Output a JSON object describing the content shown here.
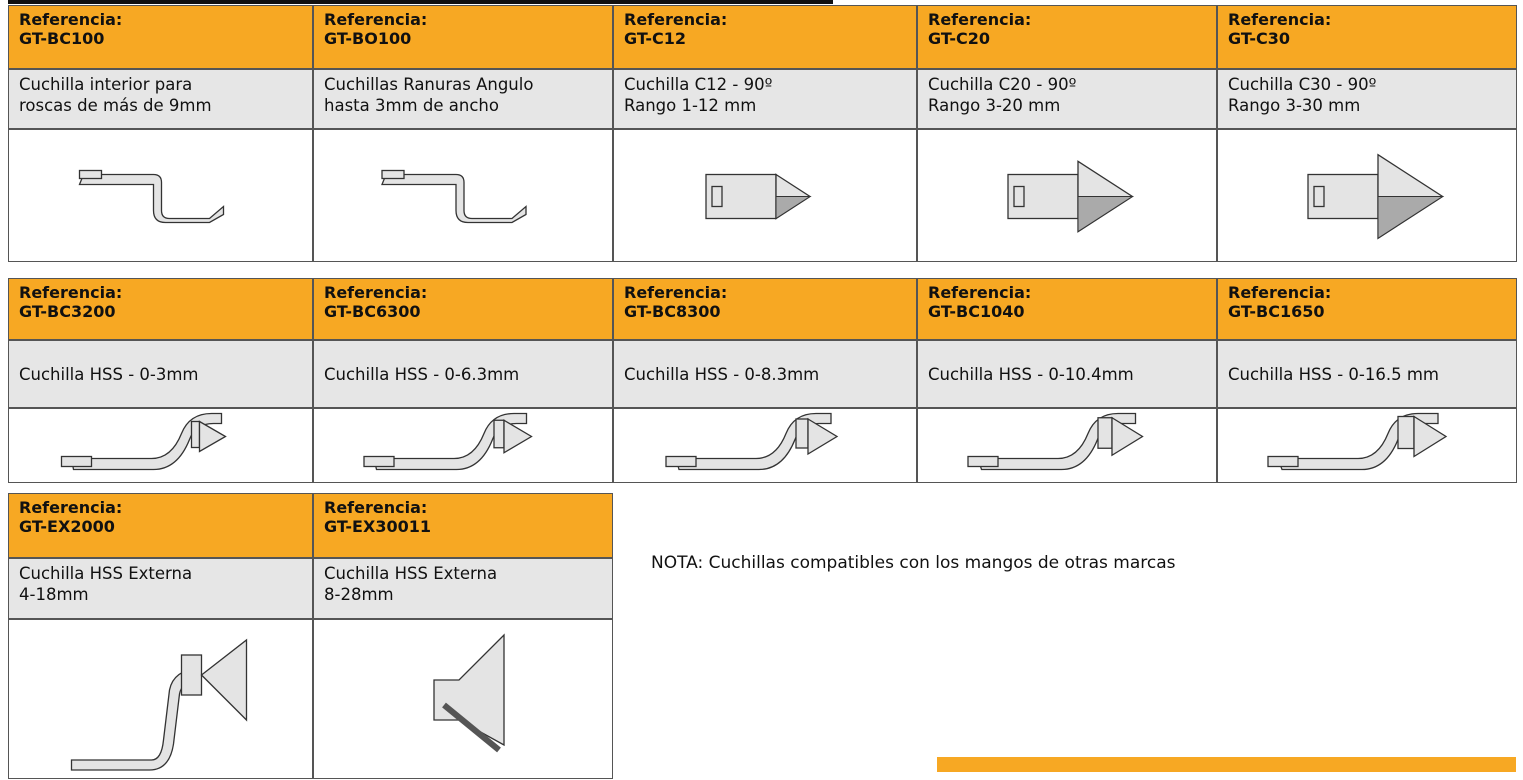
{
  "tables": [
    {
      "cells": [
        {
          "label": "Referencia:",
          "code": "GT-BC100",
          "description": [
            "Cuchilla interior para",
            "roscas de más de 9mm"
          ]
        },
        {
          "label": "Referencia:",
          "code": "GT-BO100",
          "description": [
            "Cuchillas Ranuras Angulo",
            "hasta 3mm de ancho"
          ]
        },
        {
          "label": "Referencia:",
          "code": "GT-C12",
          "description": [
            "Cuchilla C12 - 90º",
            "Rango 1-12 mm"
          ]
        },
        {
          "label": "Referencia:",
          "code": "GT-C20",
          "description": [
            "Cuchilla C20 - 90º",
            "Rango 3-20 mm"
          ]
        },
        {
          "label": "Referencia:",
          "code": "GT-C30",
          "description": [
            "Cuchilla C30 - 90º",
            "Rango 3-30 mm"
          ]
        }
      ]
    },
    {
      "cells": [
        {
          "label": "Referencia:",
          "code": "GT-BC3200",
          "description": [
            "Cuchilla HSS - 0-3mm"
          ]
        },
        {
          "label": "Referencia:",
          "code": "GT-BC6300",
          "description": [
            "Cuchilla HSS - 0-6.3mm"
          ]
        },
        {
          "label": "Referencia:",
          "code": "GT-BC8300",
          "description": [
            "Cuchilla HSS - 0-8.3mm"
          ]
        },
        {
          "label": "Referencia:",
          "code": "GT-BC1040",
          "description": [
            "Cuchilla HSS - 0-10.4mm"
          ]
        },
        {
          "label": "Referencia:",
          "code": "GT-BC1650",
          "description": [
            "Cuchilla HSS - 0-16.5 mm"
          ]
        }
      ]
    },
    {
      "cells": [
        {
          "label": "Referencia:",
          "code": "GT-EX2000",
          "description": [
            "Cuchilla HSS Externa",
            "4-18mm"
          ]
        },
        {
          "label": "Referencia:",
          "code": "GT-EX30011",
          "description": [
            "Cuchilla HSS Externa",
            "8-28mm"
          ]
        }
      ]
    }
  ],
  "note": "NOTA: Cuchillas compatibles con los mangos de otras marcas"
}
